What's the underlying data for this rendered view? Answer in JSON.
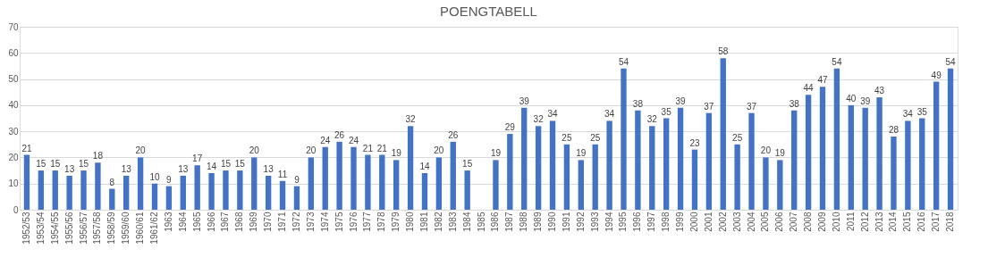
{
  "chart_data": {
    "type": "bar",
    "title": "POENGTABELL",
    "categories": [
      "1952/53",
      "1953/54",
      "1954/55",
      "1955/56",
      "1956/57",
      "1957/58",
      "1958/59",
      "1959/60",
      "1960/61",
      "1961/62",
      "1963",
      "1964",
      "1965",
      "1966",
      "1967",
      "1968",
      "1969",
      "1970",
      "1971",
      "1972",
      "1973",
      "1974",
      "1975",
      "1976",
      "1977",
      "1978",
      "1979",
      "1980",
      "1981",
      "1982",
      "1983",
      "1984",
      "1985",
      "1986",
      "1987",
      "1988",
      "1989",
      "1990",
      "1991",
      "1992",
      "1993",
      "1994",
      "1995",
      "1996",
      "1997",
      "1998",
      "1999",
      "2000",
      "2001",
      "2002",
      "2003",
      "2004",
      "2005",
      "2006",
      "2007",
      "2008",
      "2009",
      "2010",
      "2011",
      "2012",
      "2013",
      "2014",
      "2015",
      "2016",
      "2017",
      "2018"
    ],
    "values": [
      21,
      15,
      15,
      13,
      15,
      18,
      8,
      13,
      20,
      10,
      9,
      13,
      17,
      14,
      15,
      15,
      20,
      13,
      11,
      9,
      20,
      24,
      26,
      24,
      21,
      21,
      19,
      32,
      14,
      20,
      26,
      15,
      null,
      19,
      29,
      39,
      32,
      34,
      25,
      19,
      25,
      34,
      54,
      38,
      32,
      35,
      39,
      23,
      37,
      58,
      25,
      37,
      20,
      19,
      38,
      44,
      47,
      54,
      40,
      39,
      43,
      28,
      34,
      35,
      49,
      54
    ],
    "color": "#4472c4",
    "ylim": [
      0,
      70
    ],
    "yticks": [
      0,
      10,
      20,
      30,
      40,
      50,
      60,
      70
    ],
    "grid": "y",
    "data_labels": true
  }
}
